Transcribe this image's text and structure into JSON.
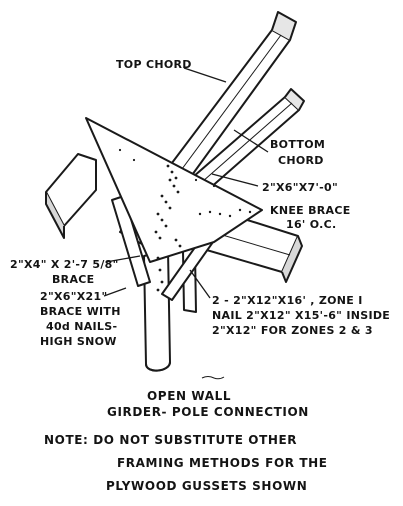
{
  "labels": {
    "top_chord": "TOP CHORD",
    "bottom_chord_1": "BOTTOM",
    "bottom_chord_2": "CHORD",
    "knee_brace_1": "2\"X6\"X7'-0\"",
    "knee_brace_2": "KNEE BRACE",
    "knee_brace_3": "16' O.C.",
    "brace_1": "2\"X4\" X 2'-7 5/8\"",
    "brace_2": "BRACE",
    "girder_1": "2 - 2\"X12\"X16' , ZONE I",
    "girder_2": "NAIL 2\"X12\" X15'-6\" INSIDE",
    "girder_3": "2\"X12\" FOR ZONES 2 & 3",
    "nailed_brace_1": "2\"X6\"X21\"",
    "nailed_brace_2": "BRACE WITH",
    "nailed_brace_3": "40d NAILS-",
    "nailed_brace_4": "HIGH SNOW"
  },
  "caption": {
    "line1": "OPEN WALL",
    "line2": "GIRDER- POLE CONNECTION"
  },
  "note": {
    "line1": "NOTE: DO NOT SUBSTITUTE OTHER",
    "line2": "FRAMING METHODS FOR THE",
    "line3": "PLYWOOD GUSSETS SHOWN"
  }
}
